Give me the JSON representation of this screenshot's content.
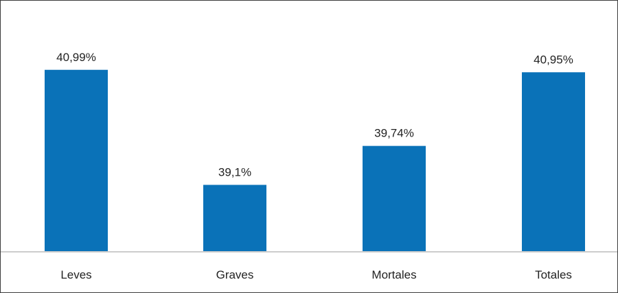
{
  "chart_data": {
    "type": "bar",
    "title": "",
    "xlabel": "",
    "ylabel": "",
    "categories": [
      "Leves",
      "Graves",
      "Mortales",
      "Totales"
    ],
    "values": [
      40.99,
      39.1,
      39.74,
      40.95
    ],
    "value_labels": [
      "40,99%",
      "39,1%",
      "39,74%",
      "40,95%"
    ],
    "ylim": [
      38.0,
      41.1
    ],
    "grid": false,
    "legend": "none",
    "bar_color": "#0a72b8",
    "axis_color": "#cccccc"
  }
}
